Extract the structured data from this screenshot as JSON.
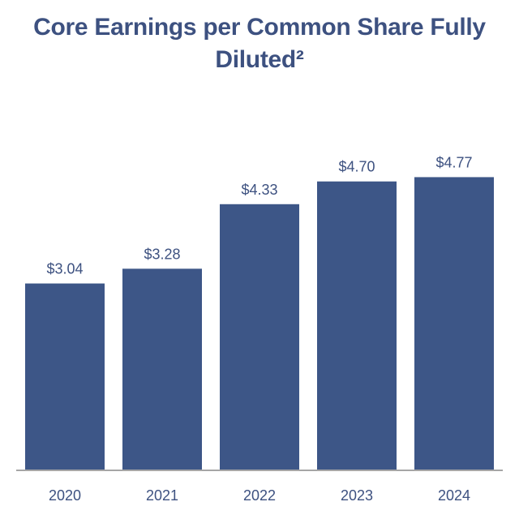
{
  "chart_data": {
    "type": "bar",
    "title_line1": "Core Earnings per Common Share Fully",
    "title_line2": "Diluted²",
    "categories": [
      "2020",
      "2021",
      "2022",
      "2023",
      "2024"
    ],
    "values": [
      3.04,
      3.28,
      4.33,
      4.7,
      4.77
    ],
    "data_labels": [
      "$3.04",
      "$3.28",
      "$4.33",
      "$4.70",
      "$4.77"
    ],
    "bar_color": "#3d5687",
    "ylim": [
      0,
      5.5
    ],
    "grid": false,
    "legend": false
  }
}
